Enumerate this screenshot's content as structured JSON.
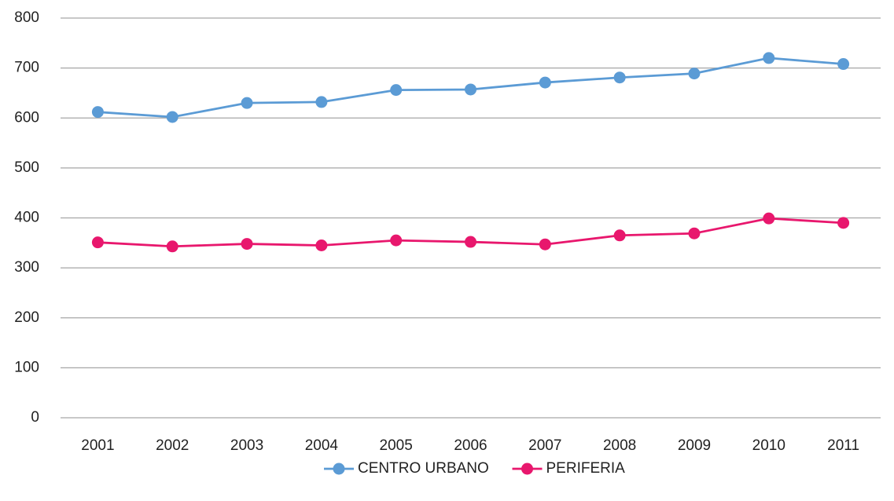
{
  "chart_data": {
    "type": "line",
    "categories": [
      "2001",
      "2002",
      "2003",
      "2004",
      "2005",
      "2006",
      "2007",
      "2008",
      "2009",
      "2010",
      "2011"
    ],
    "series": [
      {
        "name": "CENTRO URBANO",
        "color": "#5b9bd5",
        "values": [
          612,
          602,
          630,
          632,
          656,
          657,
          671,
          681,
          689,
          720,
          708
        ]
      },
      {
        "name": "PERIFERIA",
        "color": "#e8176d",
        "values": [
          351,
          343,
          348,
          345,
          355,
          352,
          347,
          365,
          369,
          399,
          390
        ]
      }
    ],
    "ylim": [
      0,
      800
    ],
    "yticks": [
      0,
      100,
      200,
      300,
      400,
      500,
      600,
      700,
      800
    ],
    "grid": true,
    "legend": "bottom"
  }
}
